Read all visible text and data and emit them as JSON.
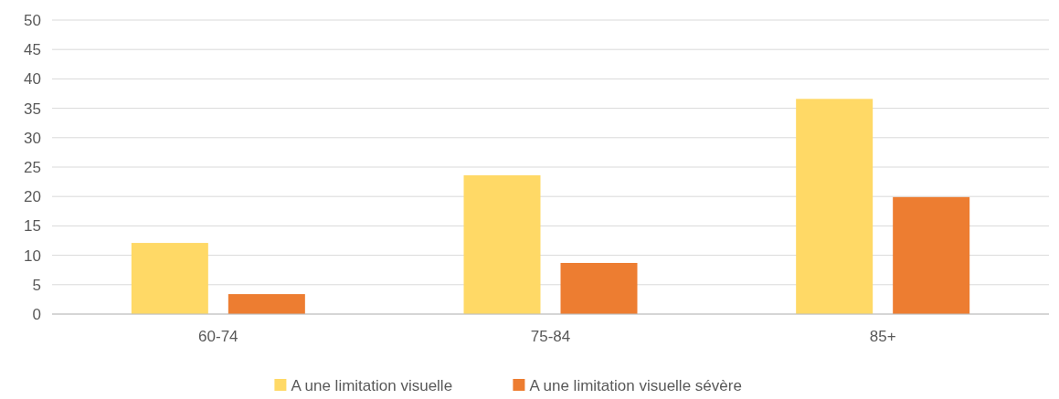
{
  "chart_data": {
    "type": "bar",
    "categories": [
      "60-74",
      "75-84",
      "85+"
    ],
    "series": [
      {
        "name": "A une limitation visuelle",
        "color": "#ffd966",
        "values": [
          12.1,
          23.6,
          36.6
        ]
      },
      {
        "name": "A une limitation visuelle sévère",
        "color": "#ed7d31",
        "values": [
          3.4,
          8.7,
          19.9
        ]
      }
    ],
    "ylim": [
      0,
      50
    ],
    "yticks": [
      0,
      5,
      10,
      15,
      20,
      25,
      30,
      35,
      40,
      45,
      50
    ],
    "grid": "y",
    "legend": "bottom"
  }
}
